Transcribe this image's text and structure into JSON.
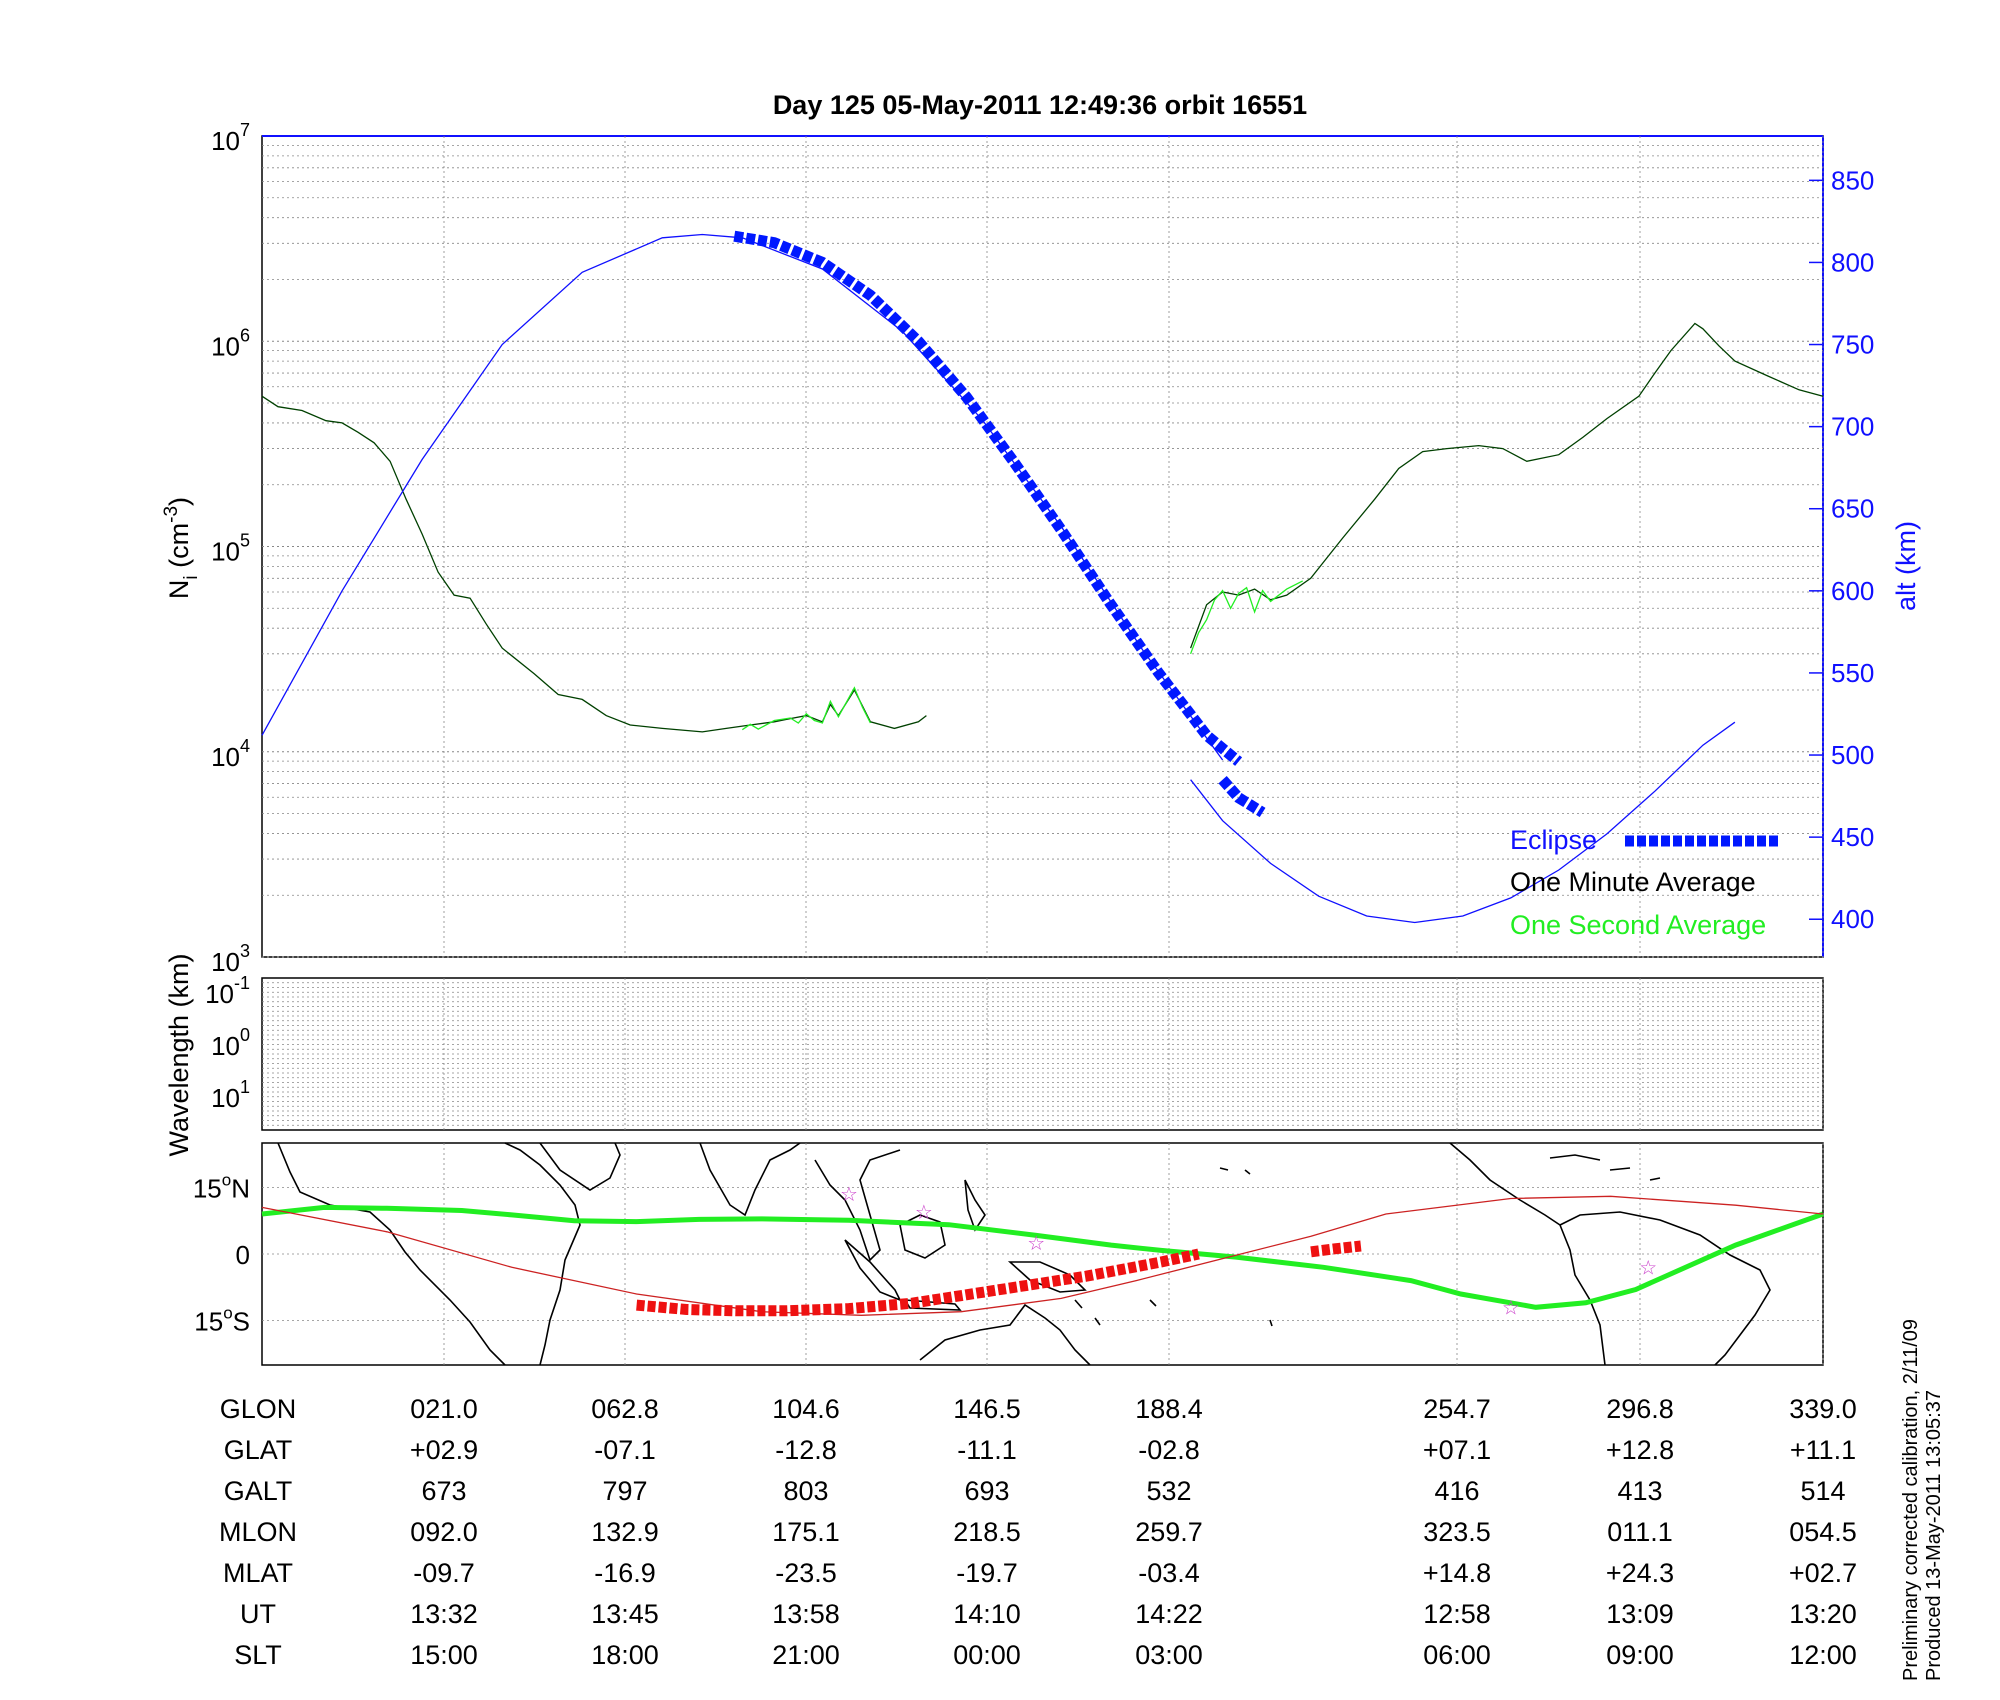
{
  "colors": {
    "altitude": "#1010ff",
    "eclipse": "#0018ff",
    "one_minute": "#004000",
    "one_second": "#22ee22",
    "track_ground": "#22ee22",
    "track_orbit": "#cc2222",
    "track_eclipse": "#ee1111",
    "stars": "#cc44cc"
  },
  "chart_data": [
    {
      "type": "line",
      "title": "Day 125  05-May-2011 12:49:36   orbit 16551",
      "ylabel": "N",
      "ylabel_sub": "i",
      "ylabel_unit_open": " (cm",
      "ylabel_unit_exp": "-3",
      "ylabel_unit_close": ")",
      "y2label": "alt (km)",
      "y_scale": "log",
      "ylim": [
        1000,
        10000000
      ],
      "y_ticks": [
        {
          "base": "10",
          "exp": "3",
          "value": 1000
        },
        {
          "base": "10",
          "exp": "4",
          "value": 10000
        },
        {
          "base": "10",
          "exp": "5",
          "value": 100000
        },
        {
          "base": "10",
          "exp": "6",
          "value": 1000000
        },
        {
          "base": "10",
          "exp": "7",
          "value": 10000000
        }
      ],
      "y2lim": [
        377,
        877
      ],
      "y2_ticks": [
        "400",
        "450",
        "500",
        "550",
        "600",
        "650",
        "700",
        "750",
        "800",
        "850"
      ],
      "grid": true,
      "legend_position": "bottom-right",
      "legend": [
        {
          "label": "Eclipse",
          "color": "#0018ff"
        },
        {
          "label": "One Minute Average",
          "color": "#000000"
        },
        {
          "label": "One Second Average",
          "color": "#22ee22"
        }
      ],
      "x_column_ticks": [
        "021.0",
        "062.8",
        "104.6",
        "146.5",
        "188.4",
        "254.7",
        "296.8",
        "339.0"
      ],
      "series": [
        {
          "name": "One Minute Average",
          "axis": "left",
          "segments": [
            [
              [
                0,
                540000
              ],
              [
                0.02,
                480000
              ],
              [
                0.05,
                460000
              ],
              [
                0.08,
                410000
              ],
              [
                0.1,
                400000
              ],
              [
                0.12,
                360000
              ],
              [
                0.14,
                320000
              ],
              [
                0.16,
                260000
              ],
              [
                0.18,
                170000
              ],
              [
                0.2,
                115000
              ],
              [
                0.22,
                75000
              ],
              [
                0.24,
                58000
              ],
              [
                0.26,
                56000
              ],
              [
                0.28,
                42000
              ],
              [
                0.3,
                32000
              ],
              [
                0.34,
                24000
              ],
              [
                0.37,
                19000
              ],
              [
                0.4,
                18000
              ],
              [
                0.43,
                15000
              ],
              [
                0.46,
                13500
              ],
              [
                0.5,
                13000
              ],
              [
                0.55,
                12500
              ],
              [
                0.58,
                13000
              ],
              [
                0.61,
                13500
              ],
              [
                0.64,
                14000
              ],
              [
                0.66,
                14500
              ],
              [
                0.68,
                15000
              ],
              [
                0.7,
                14000
              ],
              [
                0.71,
                17000
              ],
              [
                0.72,
                15000
              ],
              [
                0.74,
                20000
              ],
              [
                0.76,
                14000
              ],
              [
                0.79,
                13000
              ],
              [
                0.82,
                14000
              ],
              [
                0.83,
                15000
              ]
            ],
            [
              [
                1.16,
                32000
              ],
              [
                1.18,
                52000
              ],
              [
                1.2,
                60000
              ],
              [
                1.22,
                58000
              ],
              [
                1.24,
                62000
              ],
              [
                1.26,
                55000
              ],
              [
                1.28,
                58000
              ],
              [
                1.31,
                70000
              ],
              [
                1.35,
                110000
              ],
              [
                1.39,
                170000
              ],
              [
                1.42,
                240000
              ],
              [
                1.45,
                290000
              ],
              [
                1.48,
                300000
              ],
              [
                1.52,
                310000
              ],
              [
                1.55,
                300000
              ],
              [
                1.58,
                260000
              ],
              [
                1.62,
                280000
              ],
              [
                1.65,
                340000
              ],
              [
                1.68,
                420000
              ],
              [
                1.72,
                540000
              ],
              [
                1.74,
                700000
              ],
              [
                1.76,
                900000
              ],
              [
                1.79,
                1220000
              ],
              [
                1.8,
                1150000
              ],
              [
                1.82,
                950000
              ],
              [
                1.84,
                800000
              ],
              [
                1.88,
                680000
              ],
              [
                1.92,
                580000
              ],
              [
                1.95,
                540000
              ]
            ]
          ]
        },
        {
          "name": "One Second Average",
          "axis": "left",
          "segments": [
            [
              [
                0.6,
                12800
              ],
              [
                0.61,
                13600
              ],
              [
                0.62,
                12900
              ],
              [
                0.64,
                14200
              ],
              [
                0.66,
                14600
              ],
              [
                0.67,
                13800
              ],
              [
                0.68,
                15300
              ],
              [
                0.69,
                14200
              ],
              [
                0.7,
                13800
              ],
              [
                0.71,
                17600
              ],
              [
                0.72,
                14800
              ],
              [
                0.74,
                20500
              ],
              [
                0.75,
                16500
              ],
              [
                0.76,
                13800
              ]
            ],
            [
              [
                1.16,
                30000
              ],
              [
                1.17,
                38000
              ],
              [
                1.18,
                44000
              ],
              [
                1.19,
                55000
              ],
              [
                1.2,
                61000
              ],
              [
                1.21,
                50000
              ],
              [
                1.22,
                59000
              ],
              [
                1.23,
                63000
              ],
              [
                1.24,
                48000
              ],
              [
                1.25,
                61000
              ],
              [
                1.26,
                54000
              ],
              [
                1.28,
                62000
              ],
              [
                1.3,
                68000
              ]
            ]
          ]
        },
        {
          "name": "alt (km)",
          "axis": "right",
          "segments": [
            [
              [
                0,
                512
              ],
              [
                0.1,
                600
              ],
              [
                0.2,
                680
              ],
              [
                0.3,
                750
              ],
              [
                0.4,
                794
              ],
              [
                0.5,
                815
              ],
              [
                0.55,
                817
              ],
              [
                0.6,
                815
              ],
              [
                0.7,
                796
              ],
              [
                0.8,
                758
              ],
              [
                0.9,
                704
              ],
              [
                1.0,
                638
              ],
              [
                1.1,
                564
              ],
              [
                1.2,
                497
              ]
            ],
            [
              [
                1.16,
                485
              ],
              [
                1.2,
                460
              ],
              [
                1.26,
                434
              ],
              [
                1.32,
                414
              ],
              [
                1.38,
                402
              ],
              [
                1.44,
                398
              ],
              [
                1.5,
                402
              ],
              [
                1.56,
                413
              ],
              [
                1.62,
                430
              ],
              [
                1.68,
                452
              ],
              [
                1.74,
                478
              ],
              [
                1.8,
                506
              ],
              [
                1.84,
                520
              ]
            ]
          ]
        },
        {
          "name": "Eclipse",
          "axis": "right",
          "segments": [
            [
              [
                0.59,
                816
              ],
              [
                0.64,
                812
              ],
              [
                0.7,
                800
              ],
              [
                0.76,
                780
              ],
              [
                0.82,
                752
              ],
              [
                0.88,
                718
              ],
              [
                0.94,
                678
              ],
              [
                1.0,
                636
              ],
              [
                1.06,
                592
              ],
              [
                1.12,
                550
              ],
              [
                1.18,
                512
              ],
              [
                1.22,
                496
              ]
            ],
            [
              [
                1.2,
                485
              ],
              [
                1.22,
                474
              ],
              [
                1.25,
                465
              ]
            ]
          ]
        }
      ]
    },
    {
      "type": "heatmap",
      "ylabel": "Wavelength (km)",
      "y_ticks": [
        {
          "base": "10",
          "exp": "-1"
        },
        {
          "base": "10",
          "exp": "0"
        },
        {
          "base": "10",
          "exp": "1"
        }
      ],
      "grid": true
    },
    {
      "type": "line",
      "y_ticks": [
        {
          "value": 15,
          "label": "15",
          "hemisphere": "N"
        },
        {
          "value": 0,
          "label": "0"
        },
        {
          "value": -15,
          "label": "15",
          "hemisphere": "S"
        }
      ],
      "degree_symbol": "o",
      "ylim": [
        -25,
        25
      ],
      "series": [
        {
          "name": "ground_track",
          "points": [
            [
              0,
              9
            ],
            [
              0.05,
              10.5
            ],
            [
              0.1,
              10.3
            ],
            [
              0.16,
              9.8
            ],
            [
              0.2,
              8.8
            ],
            [
              0.25,
              7.5
            ],
            [
              0.3,
              7.3
            ],
            [
              0.35,
              7.8
            ],
            [
              0.4,
              7.9
            ],
            [
              0.47,
              7.6
            ],
            [
              0.55,
              6.6
            ],
            [
              0.62,
              4.2
            ],
            [
              0.68,
              2
            ],
            [
              0.72,
              0.8
            ],
            [
              0.78,
              -0.7
            ],
            [
              0.85,
              -3
            ],
            [
              0.92,
              -6
            ],
            [
              0.96,
              -9
            ],
            [
              1.02,
              -12
            ],
            [
              1.06,
              -11
            ],
            [
              1.1,
              -8
            ],
            [
              1.18,
              2
            ],
            [
              1.25,
              9
            ]
          ]
        },
        {
          "name": "orbit_track",
          "points": [
            [
              0,
              10.5
            ],
            [
              0.1,
              5
            ],
            [
              0.2,
              -3
            ],
            [
              0.3,
              -9
            ],
            [
              0.4,
              -13
            ],
            [
              0.48,
              -13.8
            ],
            [
              0.56,
              -13
            ],
            [
              0.64,
              -10
            ],
            [
              0.7,
              -6
            ],
            [
              0.77,
              -1
            ],
            [
              0.84,
              4
            ],
            [
              0.9,
              9
            ],
            [
              1.0,
              12.5
            ],
            [
              1.08,
              13
            ],
            [
              1.18,
              11
            ],
            [
              1.25,
              9
            ]
          ]
        },
        {
          "name": "eclipse_track",
          "points": [
            [
              0.3,
              -11.5
            ],
            [
              0.34,
              -12.5
            ],
            [
              0.38,
              -12.8
            ],
            [
              0.42,
              -12.8
            ],
            [
              0.47,
              -12.3
            ],
            [
              0.52,
              -11.1
            ],
            [
              0.58,
              -8.5
            ],
            [
              0.66,
              -5
            ],
            [
              0.72,
              -1.8
            ],
            [
              0.75,
              0
            ]
          ]
        },
        {
          "name": "eclipse_track_2",
          "points": [
            [
              0.84,
              0.5
            ],
            [
              0.86,
              1.2
            ],
            [
              0.88,
              1.8
            ]
          ]
        }
      ],
      "markers": [
        [
          0.47,
          13.5
        ],
        [
          0.53,
          9.5
        ],
        [
          0.62,
          2.5
        ],
        [
          1.0,
          -12
        ],
        [
          1.11,
          -3
        ]
      ]
    }
  ],
  "table": {
    "row_labels": [
      "GLON",
      "GLAT",
      "GALT",
      "MLON",
      "MLAT",
      "UT",
      "SLT"
    ],
    "columns": [
      [
        "021.0",
        "+02.9",
        "673",
        "092.0",
        "-09.7",
        "13:32",
        "15:00"
      ],
      [
        "062.8",
        "-07.1",
        "797",
        "132.9",
        "-16.9",
        "13:45",
        "18:00"
      ],
      [
        "104.6",
        "-12.8",
        "803",
        "175.1",
        "-23.5",
        "13:58",
        "21:00"
      ],
      [
        "146.5",
        "-11.1",
        "693",
        "218.5",
        "-19.7",
        "14:10",
        "00:00"
      ],
      [
        "188.4",
        "-02.8",
        "532",
        "259.7",
        "-03.4",
        "14:22",
        "03:00"
      ],
      [
        "254.7",
        "+07.1",
        "416",
        "323.5",
        "+14.8",
        "12:58",
        "06:00"
      ],
      [
        "296.8",
        "+12.8",
        "413",
        "011.1",
        "+24.3",
        "13:09",
        "09:00"
      ],
      [
        "339.0",
        "+11.1",
        "514",
        "054.5",
        "+02.7",
        "13:20",
        "12:00"
      ]
    ]
  },
  "footnote": {
    "line1": "Preliminary corrected calibration, 2/11/09",
    "line2": "Produced 13-May-2011 13:05:37"
  }
}
